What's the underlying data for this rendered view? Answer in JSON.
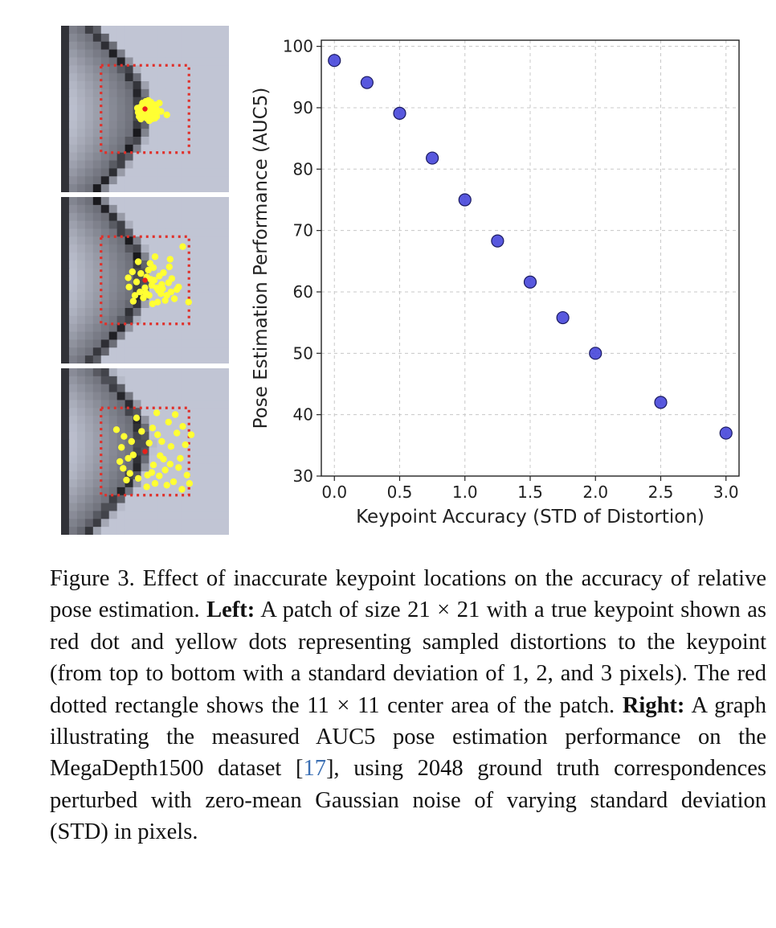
{
  "colors": {
    "marker_fill": "#3b3bd8",
    "marker_edge": "#1a1a60",
    "keypoint_true": "#e8201a",
    "keypoint_samples": "#ffff33",
    "rectangle": "#e0302a",
    "citation": "#3b6fb3"
  },
  "left_panels": {
    "patch_size": "21 × 21",
    "center_area": "11 × 11",
    "panels": [
      {
        "std": 1,
        "samples": [
          [
            0.5,
            0.1
          ],
          [
            0.8,
            0.4
          ],
          [
            -0.2,
            0.3
          ],
          [
            1.2,
            -0.5
          ],
          [
            0.1,
            -0.9
          ],
          [
            -0.6,
            -0.2
          ],
          [
            0.9,
            0.9
          ],
          [
            0.3,
            0.6
          ],
          [
            -0.4,
            0.8
          ],
          [
            1.5,
            0.2
          ],
          [
            0.6,
            -0.3
          ],
          [
            -0.1,
            -0.4
          ],
          [
            1.1,
            0.6
          ],
          [
            0.2,
            1.1
          ],
          [
            -0.8,
            0.4
          ],
          [
            0.7,
            -0.8
          ],
          [
            0.4,
            0.2
          ],
          [
            1.3,
            -0.1
          ],
          [
            -0.3,
            -0.7
          ],
          [
            0.0,
            0.5
          ],
          [
            0.9,
            -0.2
          ],
          [
            2.6,
            0.7
          ],
          [
            0.5,
            1.4
          ],
          [
            1.7,
            -0.7
          ],
          [
            -0.5,
            1.2
          ],
          [
            0.2,
            -0.2
          ],
          [
            1.0,
            0.1
          ],
          [
            0.6,
            0.8
          ],
          [
            -0.9,
            -0.1
          ],
          [
            0.3,
            -0.6
          ],
          [
            1.4,
            0.9
          ],
          [
            0.8,
            1.2
          ],
          [
            -0.2,
            0.0
          ],
          [
            0.1,
            0.9
          ],
          [
            1.9,
            0.3
          ],
          [
            0.4,
            -1.0
          ],
          [
            0.7,
            0.5
          ],
          [
            -0.7,
            0.9
          ],
          [
            1.2,
            1.1
          ],
          [
            0.0,
            -0.3
          ]
        ]
      },
      {
        "std": 2,
        "samples": [
          [
            1.0,
            -1.5
          ],
          [
            2.0,
            0.5
          ],
          [
            -1.0,
            0.2
          ],
          [
            0.5,
            1.8
          ],
          [
            3.0,
            -2.5
          ],
          [
            -1.5,
            -1.0
          ],
          [
            1.6,
            1.2
          ],
          [
            0.2,
            -0.4
          ],
          [
            2.6,
            1.8
          ],
          [
            -0.6,
            1.4
          ],
          [
            1.2,
            -2.8
          ],
          [
            3.8,
            1.1
          ],
          [
            0.8,
            0.6
          ],
          [
            -1.9,
            0.8
          ],
          [
            2.2,
            -0.9
          ],
          [
            1.5,
            2.6
          ],
          [
            0.0,
            0.9
          ],
          [
            -0.8,
            -2.2
          ],
          [
            3.2,
            -0.2
          ],
          [
            1.9,
            1.6
          ],
          [
            0.4,
            -1.2
          ],
          [
            2.8,
            0.3
          ],
          [
            -0.2,
            2.1
          ],
          [
            1.1,
            0.0
          ],
          [
            4.5,
            -4.0
          ],
          [
            -2.0,
            -0.3
          ],
          [
            2.4,
            2.4
          ],
          [
            0.6,
            -2.0
          ],
          [
            3.5,
            2.2
          ],
          [
            1.4,
            0.9
          ],
          [
            -1.2,
            1.8
          ],
          [
            0.9,
            2.8
          ],
          [
            2.9,
            -1.6
          ],
          [
            5.2,
            2.6
          ],
          [
            -0.5,
            -0.8
          ],
          [
            1.7,
            -0.5
          ],
          [
            0.1,
            1.5
          ],
          [
            4.0,
            0.8
          ],
          [
            2.1,
            1.0
          ],
          [
            -1.4,
            2.5
          ],
          [
            3.1,
            1.4
          ],
          [
            0.7,
            -0.1
          ]
        ]
      },
      {
        "std": 3,
        "samples": [
          [
            1.5,
            -2.0
          ],
          [
            3.0,
            1.5
          ],
          [
            -2.0,
            0.8
          ],
          [
            0.8,
            2.5
          ],
          [
            4.5,
            -3.0
          ],
          [
            -2.5,
            -1.8
          ],
          [
            2.4,
            2.2
          ],
          [
            -1.0,
            -4.0
          ],
          [
            3.8,
            -2.2
          ],
          [
            1.2,
            3.8
          ],
          [
            -3.0,
            1.2
          ],
          [
            5.0,
            2.8
          ],
          [
            0.5,
            -1.0
          ],
          [
            2.8,
            -3.5
          ],
          [
            -1.8,
            2.6
          ],
          [
            4.2,
            0.8
          ],
          [
            1.8,
            0.5
          ],
          [
            -0.8,
            3.2
          ],
          [
            3.4,
            3.6
          ],
          [
            0.2,
            4.2
          ],
          [
            -2.8,
            -0.5
          ],
          [
            2.0,
            -1.2
          ],
          [
            4.8,
            -0.8
          ],
          [
            -1.4,
            0.4
          ],
          [
            1.0,
            1.6
          ],
          [
            3.6,
            -4.4
          ],
          [
            -2.2,
            3.4
          ],
          [
            5.3,
            3.8
          ],
          [
            0.9,
            -2.8
          ],
          [
            2.6,
            4.0
          ],
          [
            -3.4,
            -2.6
          ],
          [
            1.4,
            -4.6
          ],
          [
            4.0,
            1.9
          ],
          [
            -0.4,
            -2.4
          ],
          [
            2.2,
            0.9
          ],
          [
            5.5,
            -2.0
          ],
          [
            -2.6,
            2.0
          ],
          [
            0.3,
            2.8
          ],
          [
            3.1,
            -0.6
          ],
          [
            -1.6,
            -1.2
          ],
          [
            1.7,
            2.9
          ],
          [
            4.4,
            4.5
          ]
        ]
      }
    ]
  },
  "chart_data": {
    "type": "scatter",
    "title": "",
    "xlabel": "Keypoint Accuracy (STD of Distortion)",
    "ylabel": "Pose Estimation Performance (AUC5)",
    "xlim": [
      -0.1,
      3.1
    ],
    "ylim": [
      30,
      101
    ],
    "grid": true,
    "xticks": [
      0.0,
      0.5,
      1.0,
      1.5,
      2.0,
      2.5,
      3.0
    ],
    "xtick_labels": [
      "0.0",
      "0.5",
      "1.0",
      "1.5",
      "2.0",
      "2.5",
      "3.0"
    ],
    "yticks": [
      30,
      40,
      50,
      60,
      70,
      80,
      90,
      100
    ],
    "ytick_labels": [
      "30",
      "40",
      "50",
      "60",
      "70",
      "80",
      "90",
      "100"
    ],
    "x": [
      0.0,
      0.25,
      0.5,
      0.75,
      1.0,
      1.25,
      1.5,
      1.75,
      2.0,
      2.5,
      3.0
    ],
    "y": [
      97.7,
      94.1,
      89.1,
      81.8,
      75.0,
      68.3,
      61.6,
      55.8,
      50.0,
      42.0,
      37.0
    ]
  },
  "caption": {
    "label": "Figure 3.",
    "intro": " Effect of inaccurate keypoint locations on the accuracy of relative pose estimation. ",
    "left_heading": "Left:",
    "left_text": " A patch of size 21 × 21 with a true keypoint shown as red dot and yellow dots representing sampled distortions to the keypoint (from top to bottom with a standard deviation of 1, 2, and 3 pixels). The red dotted rectan­gle shows the 11 × 11 center area of the patch. ",
    "right_heading": "Right:",
    "right_text_before": " A graph illustrating the measured AUC5 pose estimation performance on the MegaDepth1500 dataset [",
    "citation": "17",
    "right_text_after": "], using 2048 ground truth corre­spondences perturbed with zero-mean Gaussian noise of varying standard deviation (STD) in pixels."
  }
}
